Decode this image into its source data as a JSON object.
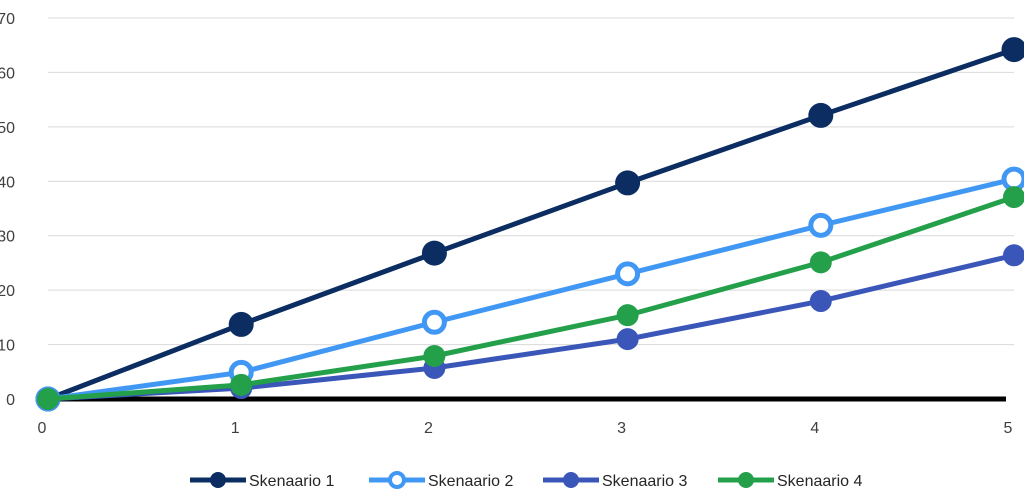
{
  "chart_data": {
    "type": "line",
    "title": "",
    "xlabel": "",
    "ylabel": "",
    "x": [
      0,
      1,
      2,
      3,
      4,
      5
    ],
    "xlim": [
      0,
      5
    ],
    "ylim": [
      0,
      70
    ],
    "yticks": [
      0,
      10,
      20,
      30,
      40,
      50,
      60,
      70
    ],
    "xtick_labels": [
      "0",
      "1",
      "2",
      "3",
      "4",
      "5"
    ],
    "ytick_labels": [
      "0",
      "10",
      "20",
      "30",
      "40",
      "50",
      "60",
      "70"
    ],
    "grid": "horizontal",
    "legend_position": "bottom",
    "series": [
      {
        "name": "Skenaario 1",
        "values": [
          0,
          13.7,
          26.8,
          39.7,
          52.1,
          64.2
        ],
        "color": "#0b2d62",
        "marker": "filled"
      },
      {
        "name": "Skenaario 2",
        "values": [
          0,
          4.9,
          14.1,
          23.0,
          31.9,
          40.4
        ],
        "color": "#4198f4",
        "marker": "hollow"
      },
      {
        "name": "Skenaario 3",
        "values": [
          0,
          2.0,
          5.7,
          11.0,
          18.0,
          26.4
        ],
        "color": "#3a56b8",
        "marker": "filled"
      },
      {
        "name": "Skenaario 4",
        "values": [
          0,
          2.6,
          7.9,
          15.4,
          25.1,
          37.1
        ],
        "color": "#24a04b",
        "marker": "filled"
      }
    ]
  }
}
